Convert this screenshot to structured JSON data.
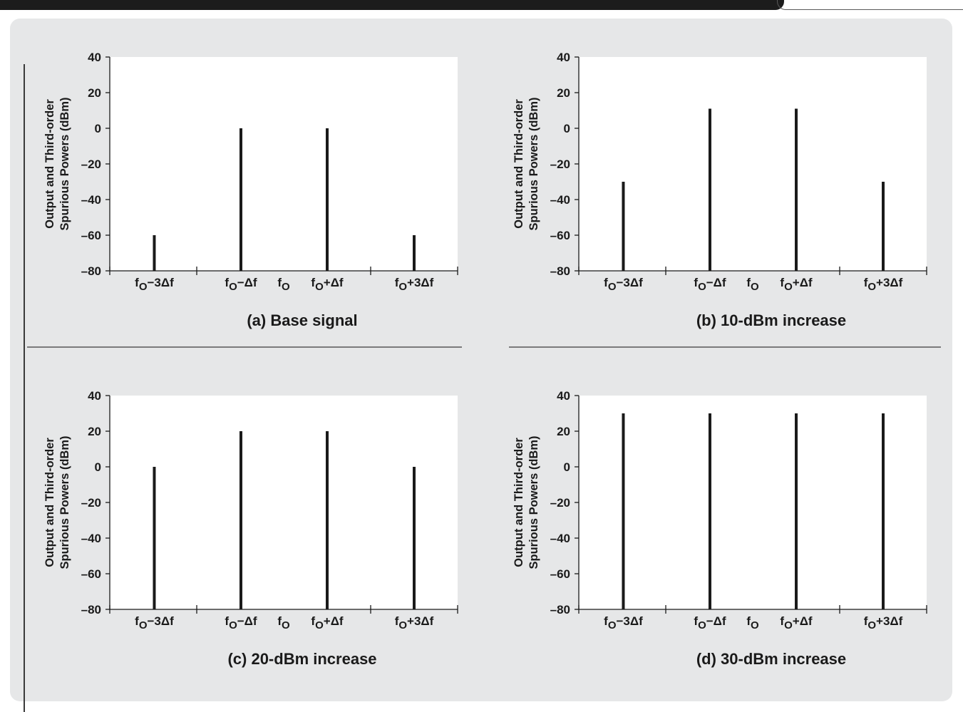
{
  "chart_data": [
    {
      "type": "bar",
      "caption": "(a) Base signal",
      "ylabel": [
        "Output and Third-order",
        "Spurious Powers (dBm)"
      ],
      "ylim": [
        -80,
        40
      ],
      "yticks": [
        "40",
        "20",
        "0",
        "-20",
        "-40",
        "-60",
        "-80"
      ],
      "xticks": [
        "fO−3Δf",
        "fO−Δf",
        "fO",
        "fO+Δf",
        "fO+3Δf"
      ],
      "categories": [
        "fO−3Δf",
        "fO−Δf",
        "fO+Δf",
        "fO+3Δf"
      ],
      "values": [
        -60,
        0,
        0,
        -60
      ],
      "grid": false
    },
    {
      "type": "bar",
      "caption": "(b) 10-dBm increase",
      "ylabel": [
        "Output and Third-order",
        "Spurious Powers (dBm)"
      ],
      "ylim": [
        -80,
        40
      ],
      "yticks": [
        "40",
        "20",
        "0",
        "-20",
        "-40",
        "-60",
        "-80"
      ],
      "xticks": [
        "fO−3Δf",
        "fO−Δf",
        "fO",
        "fO+Δf",
        "fO+3Δf"
      ],
      "categories": [
        "fO−3Δf",
        "fO−Δf",
        "fO+Δf",
        "fO+3Δf"
      ],
      "values": [
        -30,
        11,
        11,
        -30
      ],
      "grid": false
    },
    {
      "type": "bar",
      "caption": "(c) 20-dBm increase",
      "ylabel": [
        "Output and Third-order",
        "Spurious Powers (dBm)"
      ],
      "ylim": [
        -80,
        40
      ],
      "yticks": [
        "40",
        "20",
        "0",
        "-20",
        "-40",
        "-60",
        "-80"
      ],
      "xticks": [
        "fO−3Δf",
        "fO−Δf",
        "fO",
        "fO+Δf",
        "fO+3Δf"
      ],
      "categories": [
        "fO−3Δf",
        "fO−Δf",
        "fO+Δf",
        "fO+3Δf"
      ],
      "values": [
        0,
        20,
        20,
        0
      ],
      "grid": false
    },
    {
      "type": "bar",
      "caption": "(d) 30-dBm increase",
      "ylabel": [
        "Output and Third-order",
        "Spurious Powers (dBm)"
      ],
      "ylim": [
        -80,
        40
      ],
      "yticks": [
        "40",
        "20",
        "0",
        "-20",
        "-40",
        "-60",
        "-80"
      ],
      "xticks": [
        "fO−3Δf",
        "fO−Δf",
        "fO",
        "fO+Δf",
        "fO+3Δf"
      ],
      "categories": [
        "fO−3Δf",
        "fO−Δf",
        "fO+Δf",
        "fO+3Δf"
      ],
      "values": [
        30,
        30,
        30,
        30
      ],
      "grid": false
    }
  ],
  "colors": {
    "panel_background": "#e6e7e8",
    "plot_background": "#ffffff",
    "bars": "#1a1a1a",
    "top_bar": "#1c1c1c"
  }
}
